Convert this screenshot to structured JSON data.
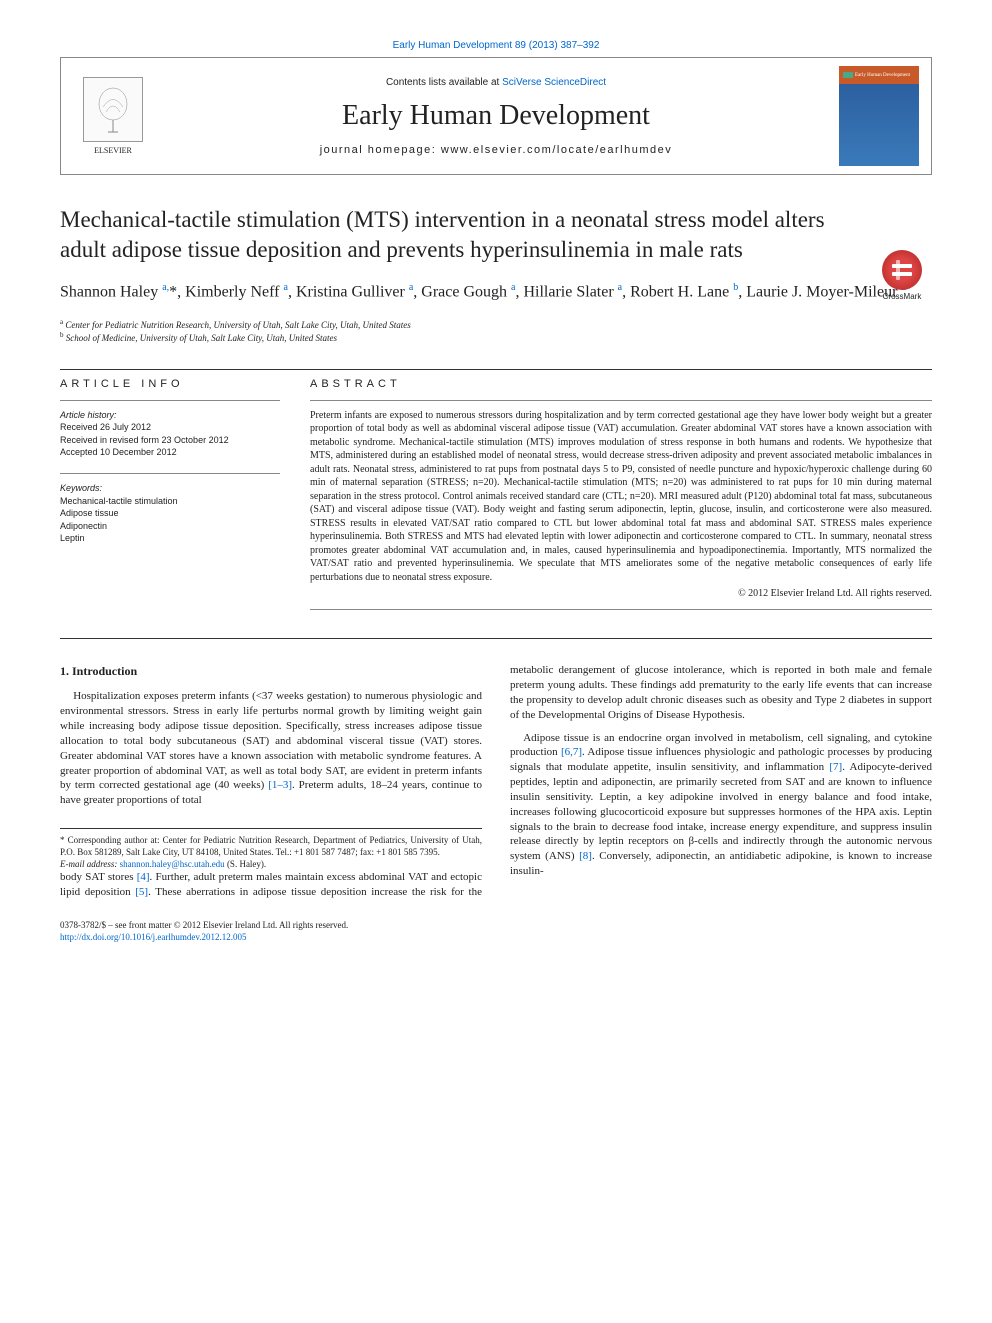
{
  "top_citation": "Early Human Development 89 (2013) 387–392",
  "header": {
    "contents_text": "Contents lists available at ",
    "contents_link": "SciVerse ScienceDirect",
    "journal_name": "Early Human Development",
    "homepage_label": "journal homepage: ",
    "homepage_url": "www.elsevier.com/locate/earlhumdev",
    "elsevier_label": "ELSEVIER",
    "cover_text": "Early Human Development"
  },
  "crossmark_label": "CrossMark",
  "title": "Mechanical-tactile stimulation (MTS) intervention in a neonatal stress model alters adult adipose tissue deposition and prevents hyperinsulinemia in male rats",
  "authors_html": "Shannon Haley <sup>a,</sup>*, Kimberly Neff <sup>a</sup>, Kristina Gulliver <sup>a</sup>, Grace Gough <sup>a</sup>, Hillarie Slater <sup>a</sup>, Robert H. Lane <sup>b</sup>, Laurie J. Moyer-Mileur <sup>a</sup>",
  "affiliations": [
    {
      "key": "a",
      "text": "Center for Pediatric Nutrition Research, University of Utah, Salt Lake City, Utah, United States"
    },
    {
      "key": "b",
      "text": "School of Medicine, University of Utah, Salt Lake City, Utah, United States"
    }
  ],
  "article_info": {
    "heading": "ARTICLE INFO",
    "history_title": "Article history:",
    "history": [
      "Received 26 July 2012",
      "Received in revised form 23 October 2012",
      "Accepted 10 December 2012"
    ],
    "keywords_title": "Keywords:",
    "keywords": [
      "Mechanical-tactile stimulation",
      "Adipose tissue",
      "Adiponectin",
      "Leptin"
    ]
  },
  "abstract": {
    "heading": "ABSTRACT",
    "text": "Preterm infants are exposed to numerous stressors during hospitalization and by term corrected gestational age they have lower body weight but a greater proportion of total body as well as abdominal visceral adipose tissue (VAT) accumulation. Greater abdominal VAT stores have a known association with metabolic syndrome. Mechanical-tactile stimulation (MTS) improves modulation of stress response in both humans and rodents. We hypothesize that MTS, administered during an established model of neonatal stress, would decrease stress-driven adiposity and prevent associated metabolic imbalances in adult rats. Neonatal stress, administered to rat pups from postnatal days 5 to P9, consisted of needle puncture and hypoxic/hyperoxic challenge during 60 min of maternal separation (STRESS; n=20). Mechanical-tactile stimulation (MTS; n=20) was administered to rat pups for 10 min during maternal separation in the stress protocol. Control animals received standard care (CTL; n=20). MRI measured adult (P120) abdominal total fat mass, subcutaneous (SAT) and visceral adipose tissue (VAT). Body weight and fasting serum adiponectin, leptin, glucose, insulin, and corticosterone were also measured. STRESS results in elevated VAT/SAT ratio compared to CTL but lower abdominal total fat mass and abdominal SAT. STRESS males experience hyperinsulinemia. Both STRESS and MTS had elevated leptin with lower adiponectin and corticosterone compared to CTL. In summary, neonatal stress promotes greater abdominal VAT accumulation and, in males, caused hyperinsulinemia and hypoadiponectinemia. Importantly, MTS normalized the VAT/SAT ratio and prevented hyperinsulinemia. We speculate that MTS ameliorates some of the negative metabolic consequences of early life perturbations due to neonatal stress exposure.",
    "copyright": "© 2012 Elsevier Ireland Ltd. All rights reserved."
  },
  "intro": {
    "heading": "1. Introduction",
    "p1_pre": "Hospitalization exposes preterm infants (<37 weeks gestation) to numerous physiologic and environmental stressors. Stress in early life perturbs normal growth by limiting weight gain while increasing body adipose tissue deposition. Specifically, stress increases adipose tissue allocation to total body subcutaneous (SAT) and abdominal visceral tissue (VAT) stores. Greater abdominal VAT stores have a known association with metabolic syndrome features. A greater proportion of abdominal VAT, as well as total body SAT, are evident in preterm infants by term corrected gestational age (40 weeks) ",
    "p1_ref1": "[1–3]",
    "p1_post": ". Preterm adults, 18–24 years, continue to have greater proportions of total",
    "p2_pre": "body SAT stores ",
    "p2_ref1": "[4]",
    "p2_mid": ". Further, adult preterm males maintain excess abdominal VAT and ectopic lipid deposition ",
    "p2_ref2": "[5]",
    "p2_post": ". These aberrations in adipose tissue deposition increase the risk for the metabolic derangement of glucose intolerance, which is reported in both male and female preterm young adults. These findings add prematurity to the early life events that can increase the propensity to develop adult chronic diseases such as obesity and Type 2 diabetes in support of the Developmental Origins of Disease Hypothesis.",
    "p3_pre": "Adipose tissue is an endocrine organ involved in metabolism, cell signaling, and cytokine production ",
    "p3_ref1": "[6,7]",
    "p3_mid1": ". Adipose tissue influences physiologic and pathologic processes by producing signals that modulate appetite, insulin sensitivity, and inflammation ",
    "p3_ref2": "[7]",
    "p3_mid2": ". Adipocyte-derived peptides, leptin and adiponectin, are primarily secreted from SAT and are known to influence insulin sensitivity. Leptin, a key adipokine involved in energy balance and food intake, increases following glucocorticoid exposure but suppresses hormones of the HPA axis. Leptin signals to the brain to decrease food intake, increase energy expenditure, and suppress insulin release directly by leptin receptors on β-cells and indirectly through the autonomic nervous system (ANS) ",
    "p3_ref3": "[8]",
    "p3_post": ". Conversely, adiponectin, an antidiabetic adipokine, is known to increase insulin-"
  },
  "corresponding": {
    "star": "*",
    "text": "Corresponding author at: Center for Pediatric Nutrition Research, Department of Pediatrics, University of Utah, P.O. Box 581289, Salt Lake City, UT 84108, United States. Tel.: +1 801 587 7487; fax: +1 801 585 7395.",
    "email_label": "E-mail address: ",
    "email": "shannon.haley@hsc.utah.edu",
    "email_suffix": " (S. Haley)."
  },
  "footer": {
    "line1": "0378-3782/$ – see front matter © 2012 Elsevier Ireland Ltd. All rights reserved.",
    "doi": "http://dx.doi.org/10.1016/j.earlhumdev.2012.12.005"
  },
  "colors": {
    "link": "#0066cc",
    "text": "#222222",
    "border": "#888888"
  }
}
